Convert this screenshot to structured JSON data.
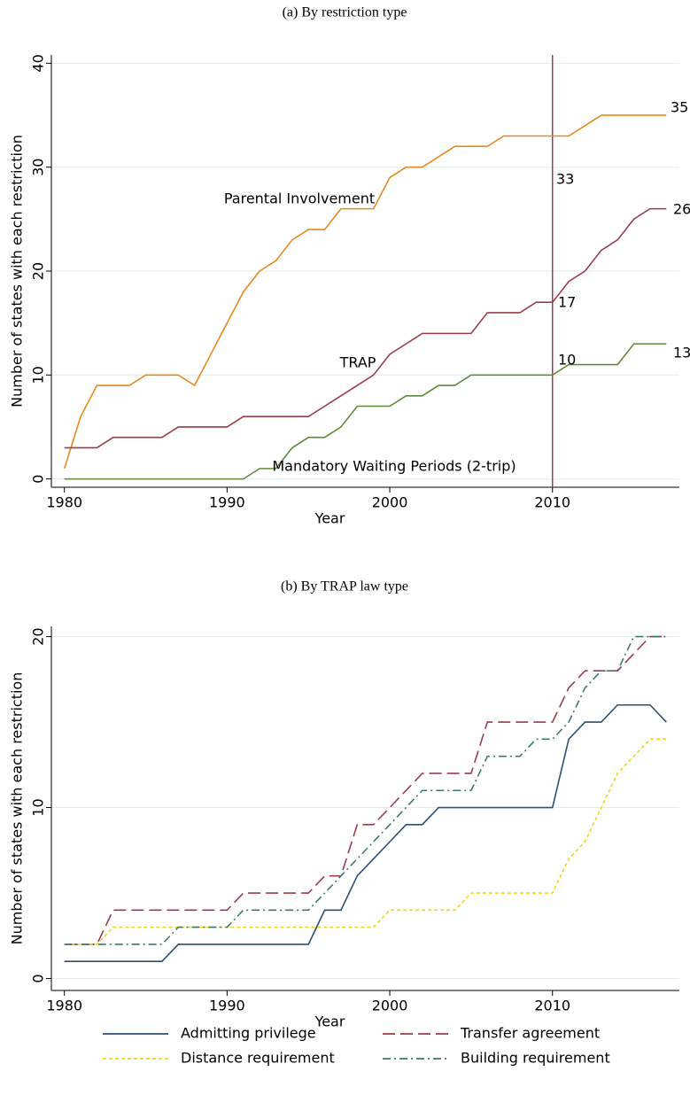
{
  "chart_data": [
    {
      "type": "line",
      "title": "(a) By restriction type",
      "x_label": "Year",
      "y_label": "Number of states with each restriction",
      "x": [
        1980,
        1981,
        1982,
        1983,
        1984,
        1985,
        1986,
        1987,
        1988,
        1989,
        1990,
        1991,
        1992,
        1993,
        1994,
        1995,
        1996,
        1997,
        1998,
        1999,
        2000,
        2001,
        2002,
        2003,
        2004,
        2005,
        2006,
        2007,
        2008,
        2009,
        2010,
        2011,
        2012,
        2013,
        2014,
        2015,
        2016,
        2017
      ],
      "series": [
        {
          "name": "Parental Involvement",
          "color": "#e8891d",
          "dash": "solid",
          "values": [
            1,
            6,
            9,
            9,
            9,
            10,
            10,
            10,
            9,
            12,
            15,
            18,
            20,
            21,
            23,
            24,
            24,
            26,
            26,
            26,
            29,
            30,
            30,
            31,
            32,
            32,
            32,
            33,
            33,
            33,
            33,
            33,
            34,
            35,
            35,
            35,
            35,
            35
          ]
        },
        {
          "name": "TRAP",
          "color": "#9c3d4a",
          "dash": "solid",
          "values": [
            3,
            3,
            3,
            4,
            4,
            4,
            4,
            5,
            5,
            5,
            5,
            6,
            6,
            6,
            6,
            6,
            7,
            8,
            9,
            10,
            12,
            13,
            14,
            14,
            14,
            14,
            16,
            16,
            16,
            17,
            17,
            19,
            20,
            22,
            23,
            25,
            26,
            26
          ]
        },
        {
          "name": "Mandatory Waiting Periods (2-trip)",
          "color": "#5e8a3a",
          "dash": "solid",
          "values": [
            0,
            0,
            0,
            0,
            0,
            0,
            0,
            0,
            0,
            0,
            0,
            0,
            1,
            1,
            3,
            4,
            4,
            5,
            7,
            7,
            7,
            8,
            8,
            9,
            9,
            10,
            10,
            10,
            10,
            10,
            10,
            11,
            11,
            11,
            11,
            13,
            13,
            13
          ]
        }
      ],
      "xlim": [
        1979.2,
        2017.8
      ],
      "ylim": [
        -0.8,
        40.8
      ],
      "xticks": [
        1980,
        1990,
        2000,
        2010
      ],
      "yticks": [
        0,
        10,
        20,
        30,
        40
      ],
      "grid": true,
      "vline": 2010,
      "vline_color": "#9c3d4a",
      "legend": "inline"
    },
    {
      "type": "line",
      "title": "(b) By TRAP law type",
      "x_label": "Year",
      "y_label": "Number of states with each restriction",
      "x": [
        1980,
        1981,
        1982,
        1983,
        1984,
        1985,
        1986,
        1987,
        1988,
        1989,
        1990,
        1991,
        1992,
        1993,
        1994,
        1995,
        1996,
        1997,
        1998,
        1999,
        2000,
        2001,
        2002,
        2003,
        2004,
        2005,
        2006,
        2007,
        2008,
        2009,
        2010,
        2011,
        2012,
        2013,
        2014,
        2015,
        2016,
        2017
      ],
      "series": [
        {
          "name": "Admitting privilege",
          "color": "#2d4f73",
          "dash": "solid",
          "values": [
            1,
            1,
            1,
            1,
            1,
            1,
            1,
            2,
            2,
            2,
            2,
            2,
            2,
            2,
            2,
            2,
            4,
            4,
            6,
            7,
            8,
            9,
            9,
            10,
            10,
            10,
            10,
            10,
            10,
            10,
            10,
            14,
            15,
            15,
            16,
            16,
            16,
            15
          ]
        },
        {
          "name": "Transfer agreement",
          "color": "#9c3d4a",
          "dash": "long-dash",
          "values": [
            2,
            2,
            2,
            4,
            4,
            4,
            4,
            4,
            4,
            4,
            4,
            5,
            5,
            5,
            5,
            5,
            6,
            6,
            9,
            9,
            10,
            11,
            12,
            12,
            12,
            12,
            15,
            15,
            15,
            15,
            15,
            17,
            18,
            18,
            18,
            19,
            20,
            20
          ]
        },
        {
          "name": "Distance requirement",
          "color": "#f2d41c",
          "dash": "dot",
          "values": [
            2,
            2,
            2,
            3,
            3,
            3,
            3,
            3,
            3,
            3,
            3,
            3,
            3,
            3,
            3,
            3,
            3,
            3,
            3,
            3,
            4,
            4,
            4,
            4,
            4,
            5,
            5,
            5,
            5,
            5,
            5,
            7,
            8,
            10,
            12,
            13,
            14,
            14
          ]
        },
        {
          "name": "Building requirement",
          "color": "#3d7a6a",
          "dash": "dash-dot",
          "values": [
            2,
            2,
            2,
            2,
            2,
            2,
            2,
            3,
            3,
            3,
            3,
            4,
            4,
            4,
            4,
            4,
            5,
            6,
            7,
            8,
            9,
            10,
            11,
            11,
            11,
            11,
            13,
            13,
            13,
            14,
            14,
            15,
            17,
            18,
            18,
            20,
            20,
            20
          ]
        }
      ],
      "xlim": [
        1979.2,
        2017.8
      ],
      "ylim": [
        -0.7,
        20.6
      ],
      "xticks": [
        1980,
        1990,
        2000,
        2010
      ],
      "yticks": [
        0,
        10,
        20
      ],
      "grid": true,
      "legend": "bottom"
    }
  ]
}
